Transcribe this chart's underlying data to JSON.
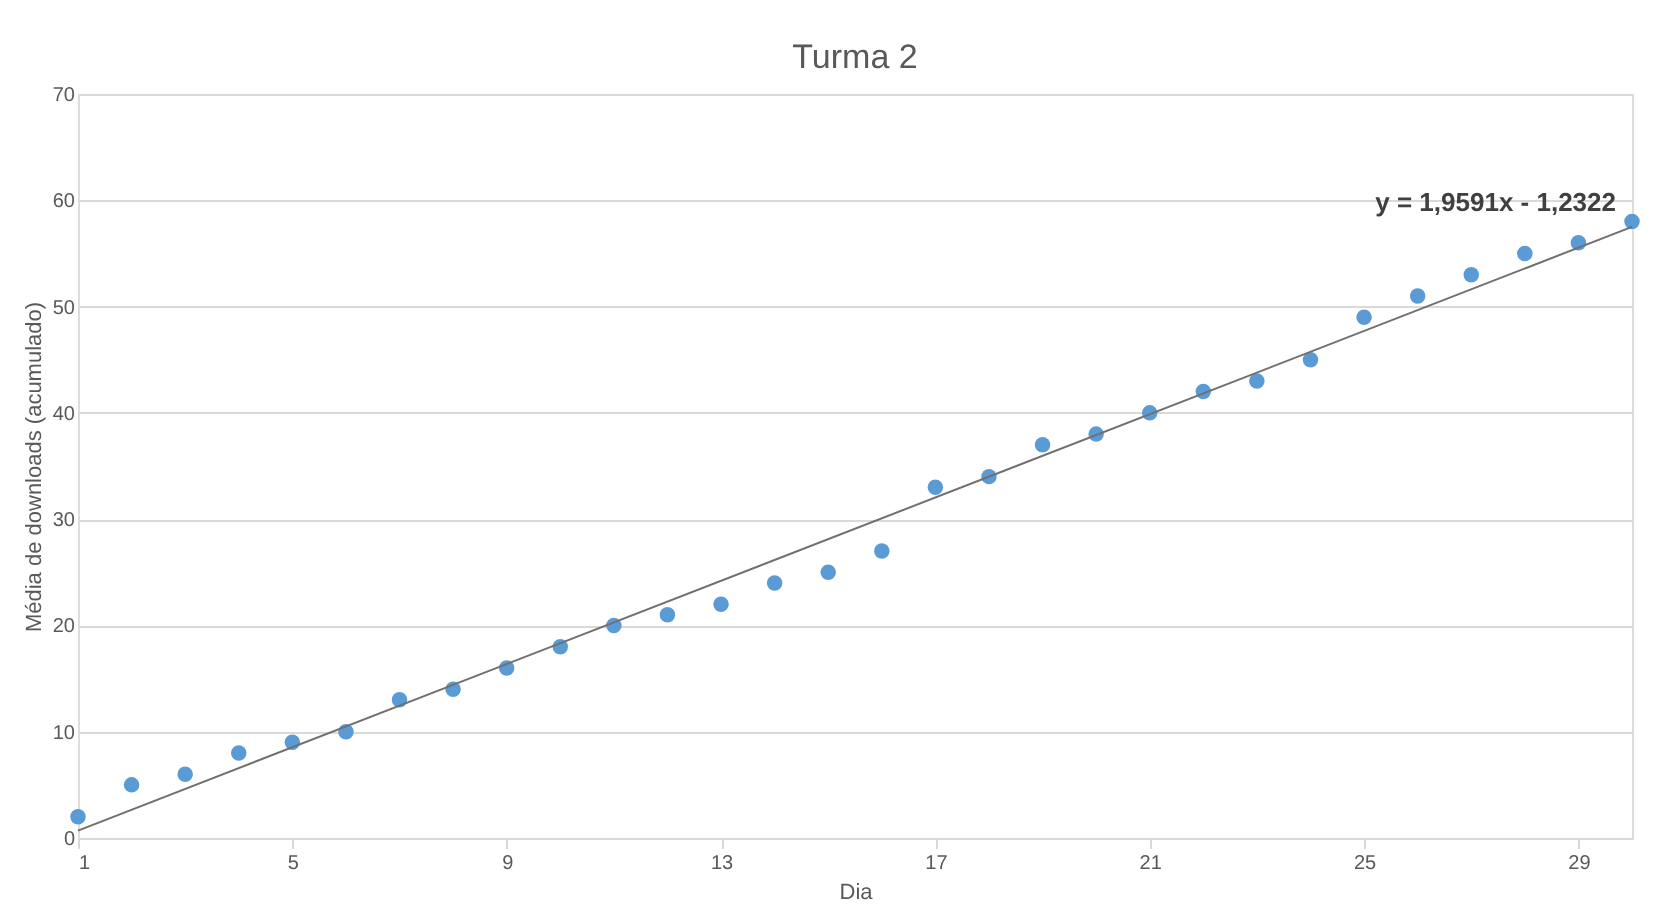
{
  "chart_data": {
    "type": "scatter",
    "title": "Turma 2",
    "xlabel": "Dia",
    "ylabel": "Média de downloads (acumulado)",
    "x": [
      1,
      2,
      3,
      4,
      5,
      6,
      7,
      8,
      9,
      10,
      11,
      12,
      13,
      14,
      15,
      16,
      17,
      18,
      19,
      20,
      21,
      22,
      23,
      24,
      25,
      26,
      27,
      28,
      29,
      30
    ],
    "series": [
      {
        "color": "#5b9bd5",
        "marker": "circle",
        "values": [
          2,
          5,
          6,
          8,
          9,
          10,
          13,
          14,
          16,
          18,
          20,
          21,
          22,
          24,
          25,
          27,
          33,
          34,
          37,
          38,
          40,
          42,
          43,
          45,
          49,
          51,
          53,
          55,
          56,
          58
        ]
      },
      {
        "type": "line",
        "color": "#707070",
        "marker": "none",
        "x": [
          1,
          30
        ],
        "values": [
          0.7,
          57.5
        ]
      }
    ],
    "annotations": [
      {
        "text": "y = 1,9591x - 1,2322",
        "x": 30,
        "y": 57.5
      }
    ],
    "xlim": [
      1,
      30
    ],
    "xticks": [
      1,
      5,
      9,
      13,
      17,
      21,
      25,
      29
    ],
    "ylim": [
      0,
      70
    ],
    "yticks": [
      0,
      10,
      20,
      30,
      40,
      50,
      60,
      70
    ],
    "grid": "y"
  }
}
